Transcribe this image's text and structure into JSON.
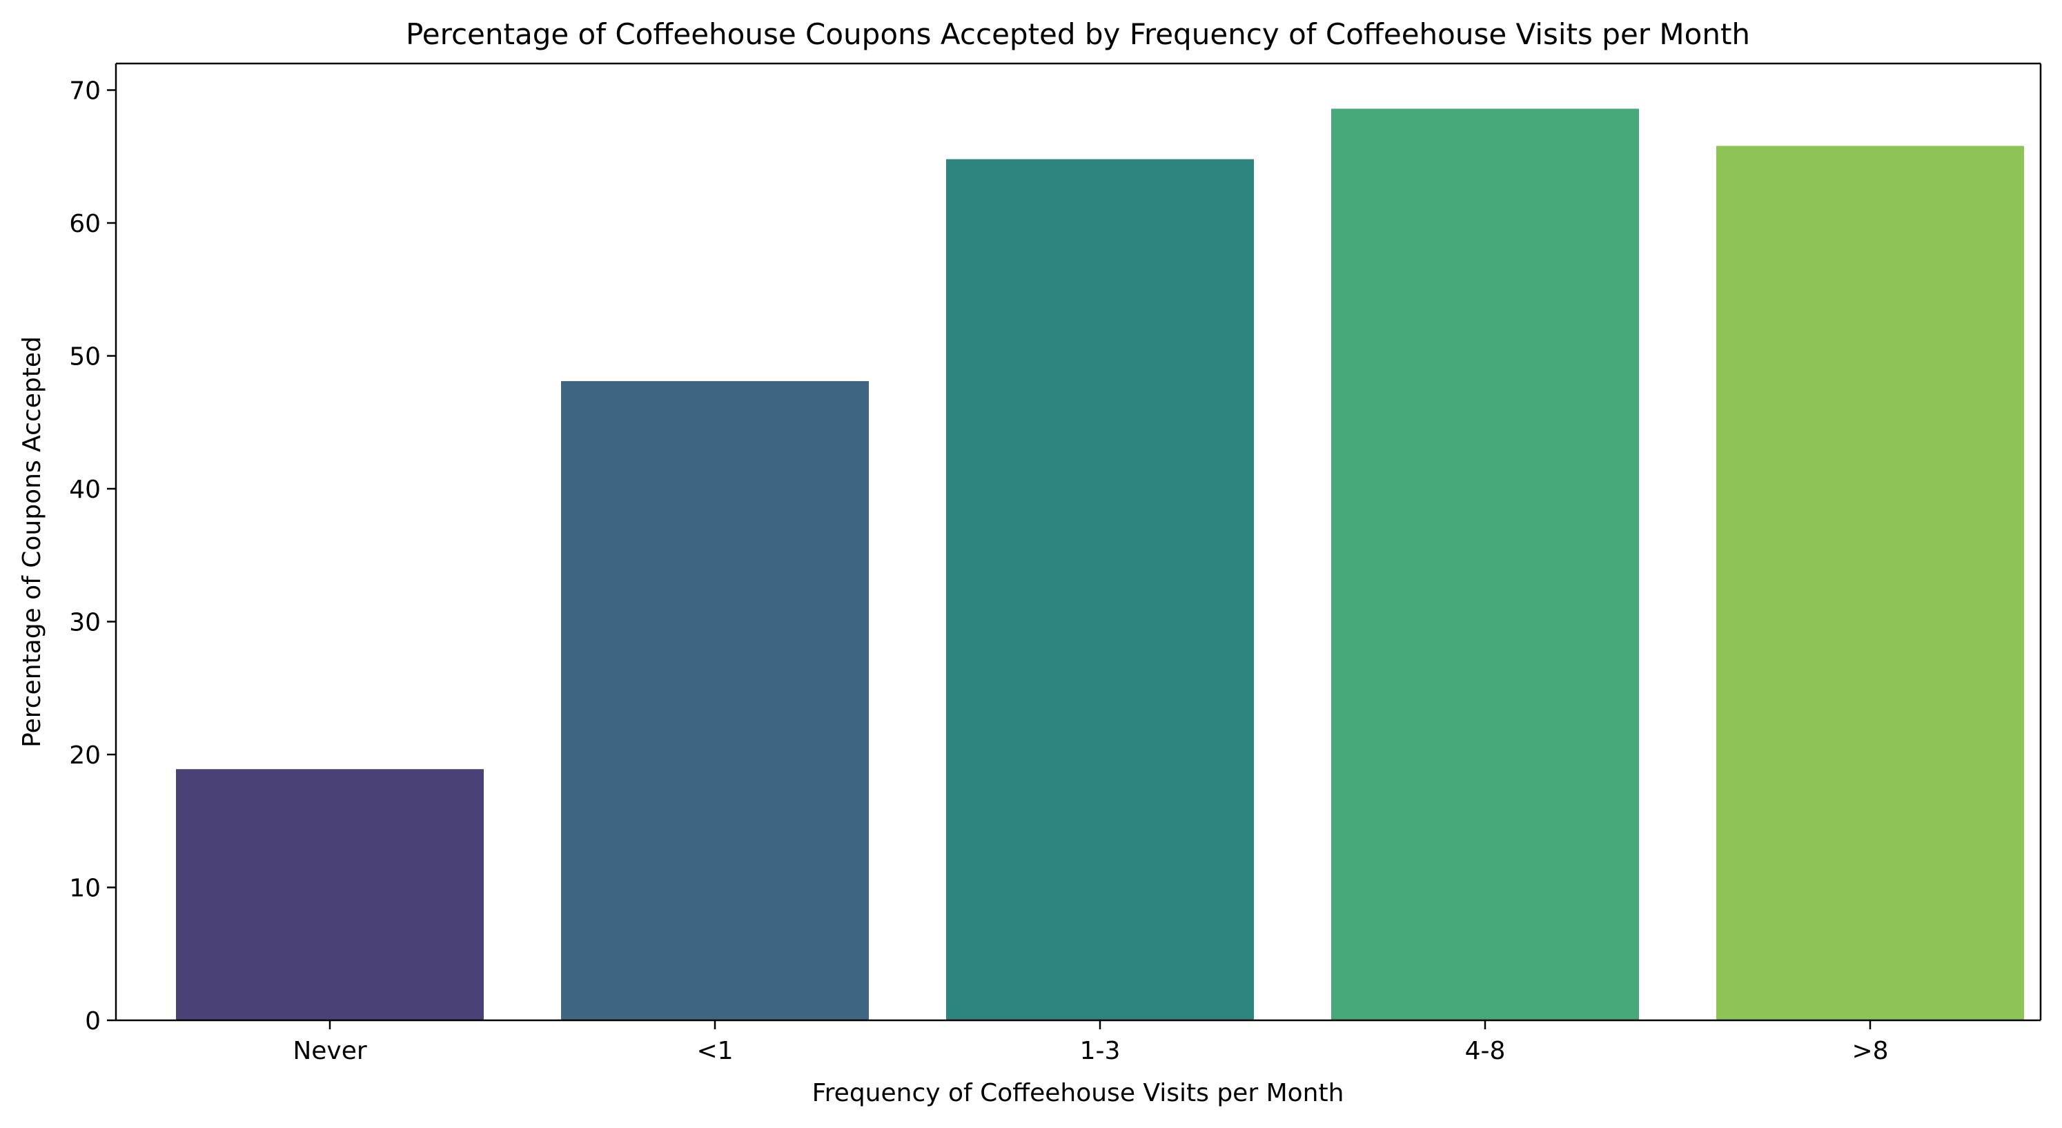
{
  "chart_data": {
    "type": "bar",
    "title": "Percentage of Coffeehouse Coupons Accepted by Frequency of Coffeehouse Visits per Month",
    "xlabel": "Frequency of Coffeehouse Visits per Month",
    "ylabel": "Percentage of Coupons Accepted",
    "categories": [
      "Never",
      "<1",
      "1-3",
      "4-8",
      ">8"
    ],
    "values": [
      18.9,
      48.1,
      64.8,
      68.6,
      65.8
    ],
    "colors": [
      "#4a4277",
      "#3e6680",
      "#2e847f",
      "#47a879",
      "#8dc455"
    ],
    "ylim": [
      0,
      72
    ],
    "yticks": [
      0,
      10,
      20,
      30,
      40,
      50,
      60,
      70
    ],
    "ytick_labels": [
      "0",
      "10",
      "20",
      "30",
      "40",
      "50",
      "60",
      "70"
    ],
    "grid": false,
    "legend": "none"
  }
}
